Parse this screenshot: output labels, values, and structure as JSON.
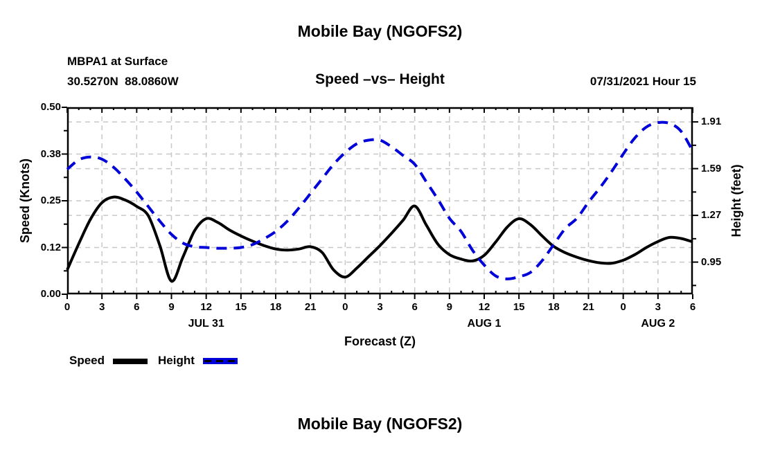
{
  "header": {
    "title": "Mobile Bay (NGOFS2)",
    "station": "MBPA1 at Surface",
    "coordinates": "30.5270N  88.0860W",
    "subtitle": "Speed –vs– Height",
    "datetime": "07/31/2021 Hour 15"
  },
  "legend": {
    "speed_label": "Speed",
    "height_label": "Height",
    "speed_color": "#000000",
    "height_color": "#0000d8"
  },
  "footer": {
    "title": "Mobile Bay (NGOFS2)"
  },
  "chart_data": {
    "type": "line",
    "title": "Mobile Bay (NGOFS2)",
    "subtitle": "Speed –vs– Height",
    "xlabel": "Forecast (Z)",
    "x_unit": "hour of day (Z)",
    "x_range": [
      0,
      54
    ],
    "x_major_tick_step": 3,
    "x_minor_tick_step": 1,
    "grid": {
      "show": true,
      "color": "#c8c8c8",
      "vertical_every_hours": 3
    },
    "legend_position": "bottom-left",
    "x_tick_labels": [
      {
        "h": 0,
        "label": "0"
      },
      {
        "h": 3,
        "label": "3"
      },
      {
        "h": 6,
        "label": "6"
      },
      {
        "h": 9,
        "label": "9"
      },
      {
        "h": 12,
        "label": "12"
      },
      {
        "h": 15,
        "label": "15"
      },
      {
        "h": 18,
        "label": "18"
      },
      {
        "h": 21,
        "label": "21"
      },
      {
        "h": 24,
        "label": "0"
      },
      {
        "h": 27,
        "label": "3"
      },
      {
        "h": 30,
        "label": "6"
      },
      {
        "h": 33,
        "label": "9"
      },
      {
        "h": 36,
        "label": "12"
      },
      {
        "h": 39,
        "label": "15"
      },
      {
        "h": 42,
        "label": "18"
      },
      {
        "h": 45,
        "label": "21"
      },
      {
        "h": 48,
        "label": "0"
      },
      {
        "h": 51,
        "label": "3"
      },
      {
        "h": 54,
        "label": "6"
      }
    ],
    "x_date_labels": [
      {
        "h": 12,
        "label": "JUL 31"
      },
      {
        "h": 36,
        "label": "AUG 1"
      },
      {
        "h": 51,
        "label": "AUG 2"
      }
    ],
    "y_left": {
      "label": "Speed (Knots)",
      "range": [
        0,
        0.5
      ],
      "ticks": [
        {
          "v": 0.0,
          "label": "0.00"
        },
        {
          "v": 0.125,
          "label": "0.12"
        },
        {
          "v": 0.25,
          "label": "0.25"
        },
        {
          "v": 0.375,
          "label": "0.38"
        },
        {
          "v": 0.5,
          "label": "0.50"
        }
      ],
      "minor_ticks": [
        0.0625,
        0.1875,
        0.3125,
        0.4375
      ]
    },
    "y_right": {
      "label": "Height (feet)",
      "range": [
        0.73,
        2.01
      ],
      "ticks": [
        {
          "v": 0.95,
          "label": "0.95"
        },
        {
          "v": 1.27,
          "label": "1.27"
        },
        {
          "v": 1.59,
          "label": "1.59"
        },
        {
          "v": 1.91,
          "label": "1.91"
        }
      ],
      "minor_ticks": [
        0.79,
        1.11,
        1.43,
        1.75
      ]
    },
    "series": [
      {
        "name": "Speed",
        "axis": "left",
        "units": "knots",
        "color": "#000000",
        "style": "solid",
        "line_width": 4,
        "x": [
          0,
          1,
          2,
          3,
          4,
          5,
          6,
          7,
          8,
          9,
          10,
          11,
          12,
          13,
          14,
          15,
          16,
          17,
          18,
          19,
          20,
          21,
          22,
          23,
          24,
          25,
          26,
          27,
          28,
          29,
          30,
          31,
          32,
          33,
          34,
          35,
          36,
          37,
          38,
          39,
          40,
          41,
          42,
          43,
          44,
          45,
          46,
          47,
          48,
          49,
          50,
          51,
          52,
          53,
          54
        ],
        "values": [
          0.065,
          0.135,
          0.2,
          0.245,
          0.26,
          0.252,
          0.235,
          0.21,
          0.13,
          0.035,
          0.1,
          0.17,
          0.202,
          0.192,
          0.172,
          0.156,
          0.142,
          0.13,
          0.121,
          0.118,
          0.121,
          0.127,
          0.112,
          0.065,
          0.046,
          0.07,
          0.1,
          0.13,
          0.163,
          0.198,
          0.236,
          0.185,
          0.134,
          0.106,
          0.094,
          0.089,
          0.104,
          0.14,
          0.18,
          0.202,
          0.186,
          0.156,
          0.128,
          0.111,
          0.099,
          0.09,
          0.084,
          0.083,
          0.091,
          0.106,
          0.125,
          0.141,
          0.152,
          0.149,
          0.14
        ]
      },
      {
        "name": "Height",
        "axis": "right",
        "units": "feet",
        "color": "#0000d8",
        "style": "dashed",
        "line_width": 4,
        "x": [
          0,
          1,
          2,
          3,
          4,
          5,
          6,
          7,
          8,
          9,
          10,
          11,
          12,
          13,
          14,
          15,
          16,
          17,
          18,
          19,
          20,
          21,
          22,
          23,
          24,
          25,
          26,
          27,
          28,
          29,
          30,
          31,
          32,
          33,
          34,
          35,
          36,
          37,
          38,
          39,
          40,
          41,
          42,
          43,
          44,
          45,
          46,
          47,
          48,
          49,
          50,
          51,
          52,
          53,
          54
        ],
        "values": [
          1.585,
          1.65,
          1.67,
          1.655,
          1.6,
          1.52,
          1.43,
          1.33,
          1.23,
          1.14,
          1.08,
          1.055,
          1.05,
          1.045,
          1.045,
          1.05,
          1.07,
          1.11,
          1.16,
          1.23,
          1.32,
          1.42,
          1.52,
          1.62,
          1.7,
          1.76,
          1.785,
          1.785,
          1.74,
          1.68,
          1.62,
          1.5,
          1.38,
          1.25,
          1.16,
          1.03,
          0.93,
          0.855,
          0.835,
          0.85,
          0.88,
          0.96,
          1.07,
          1.18,
          1.25,
          1.36,
          1.46,
          1.57,
          1.69,
          1.8,
          1.875,
          1.905,
          1.9,
          1.845,
          1.71
        ]
      }
    ]
  }
}
